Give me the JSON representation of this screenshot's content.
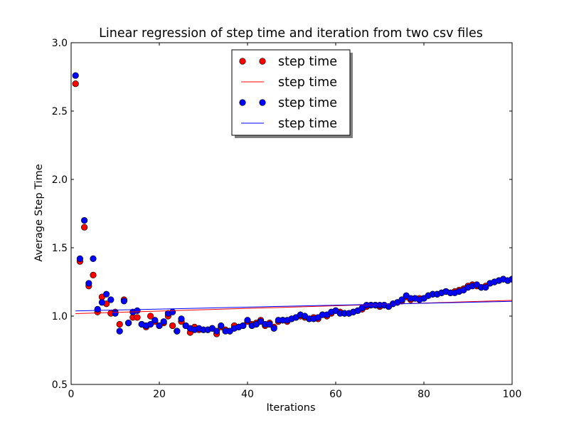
{
  "chart_data": {
    "type": "scatter",
    "title": "Linear regression of step time and iteration from two csv files",
    "xlabel": "Iterations",
    "ylabel": "Average Step Time",
    "xlim": [
      0,
      100
    ],
    "ylim": [
      0.5,
      3.0
    ],
    "x_ticks": [
      0,
      20,
      40,
      60,
      80,
      100
    ],
    "y_ticks": [
      0.5,
      1.0,
      1.5,
      2.0,
      2.5,
      3.0
    ],
    "x_tick_labels": [
      "0",
      "20",
      "40",
      "60",
      "80",
      "100"
    ],
    "y_tick_labels": [
      "0.5",
      "1.0",
      "1.5",
      "2.0",
      "2.5",
      "3.0"
    ],
    "grid": false,
    "legend_position": "top-center",
    "series": [
      {
        "name": "step time",
        "kind": "scatter",
        "color": "#ff0000",
        "x": [
          1,
          2,
          3,
          4,
          5,
          6,
          7,
          8,
          9,
          10,
          11,
          12,
          13,
          14,
          15,
          16,
          17,
          18,
          19,
          20,
          21,
          22,
          23,
          24,
          25,
          26,
          27,
          28,
          29,
          30,
          31,
          32,
          33,
          34,
          35,
          36,
          37,
          38,
          39,
          40,
          41,
          42,
          43,
          44,
          45,
          46,
          47,
          48,
          49,
          50,
          51,
          52,
          53,
          54,
          55,
          56,
          57,
          58,
          59,
          60,
          61,
          62,
          63,
          64,
          65,
          66,
          67,
          68,
          69,
          70,
          71,
          72,
          73,
          74,
          75,
          76,
          77,
          78,
          79,
          80,
          81,
          82,
          83,
          84,
          85,
          86,
          87,
          88,
          89,
          90,
          91,
          92,
          93,
          94,
          95,
          96,
          97,
          98,
          99,
          100
        ],
        "y": [
          2.7,
          1.4,
          1.65,
          1.22,
          1.3,
          1.03,
          1.14,
          1.09,
          1.02,
          1.03,
          0.94,
          1.12,
          0.95,
          0.99,
          0.99,
          0.94,
          0.92,
          1.0,
          0.96,
          0.93,
          0.95,
          1.0,
          0.93,
          0.89,
          0.96,
          0.93,
          0.88,
          0.92,
          0.9,
          0.9,
          0.9,
          0.91,
          0.87,
          0.92,
          0.9,
          0.89,
          0.93,
          0.92,
          0.93,
          0.96,
          0.94,
          0.95,
          0.97,
          0.93,
          0.95,
          0.92,
          0.96,
          0.97,
          0.96,
          0.98,
          0.99,
          1.0,
          0.99,
          0.98,
          0.99,
          0.98,
          1.01,
          1.0,
          1.02,
          1.04,
          1.03,
          1.02,
          1.02,
          1.03,
          1.04,
          1.05,
          1.07,
          1.08,
          1.08,
          1.07,
          1.08,
          1.07,
          1.09,
          1.1,
          1.11,
          1.14,
          1.12,
          1.13,
          1.13,
          1.13,
          1.15,
          1.16,
          1.16,
          1.17,
          1.18,
          1.17,
          1.18,
          1.19,
          1.2,
          1.22,
          1.23,
          1.22,
          1.21,
          1.22,
          1.24,
          1.25,
          1.26,
          1.27,
          1.26,
          1.27
        ]
      },
      {
        "name": "step time",
        "kind": "line",
        "color": "#ff0000",
        "x": [
          1,
          100
        ],
        "y": [
          1.018,
          1.115
        ]
      },
      {
        "name": "step time",
        "kind": "scatter",
        "color": "#0000ff",
        "x": [
          1,
          2,
          3,
          4,
          5,
          6,
          7,
          8,
          9,
          10,
          11,
          12,
          13,
          14,
          15,
          16,
          17,
          18,
          19,
          20,
          21,
          22,
          23,
          24,
          25,
          26,
          27,
          28,
          29,
          30,
          31,
          32,
          33,
          34,
          35,
          36,
          37,
          38,
          39,
          40,
          41,
          42,
          43,
          44,
          45,
          46,
          47,
          48,
          49,
          50,
          51,
          52,
          53,
          54,
          55,
          56,
          57,
          58,
          59,
          60,
          61,
          62,
          63,
          64,
          65,
          66,
          67,
          68,
          69,
          70,
          71,
          72,
          73,
          74,
          75,
          76,
          77,
          78,
          79,
          80,
          81,
          82,
          83,
          84,
          85,
          86,
          87,
          88,
          89,
          90,
          91,
          92,
          93,
          94,
          95,
          96,
          97,
          98,
          99,
          100
        ],
        "y": [
          2.76,
          1.42,
          1.7,
          1.24,
          1.42,
          1.05,
          1.1,
          1.16,
          1.12,
          1.02,
          0.89,
          1.11,
          0.95,
          1.03,
          1.04,
          0.94,
          0.93,
          0.94,
          0.97,
          0.93,
          0.96,
          1.02,
          1.03,
          0.89,
          0.98,
          0.93,
          0.91,
          0.9,
          0.91,
          0.9,
          0.9,
          0.91,
          0.89,
          0.93,
          0.89,
          0.89,
          0.91,
          0.92,
          0.93,
          0.97,
          0.93,
          0.94,
          0.96,
          0.94,
          0.94,
          0.91,
          0.97,
          0.97,
          0.97,
          0.98,
          0.99,
          1.01,
          1.0,
          0.98,
          0.98,
          0.99,
          1.01,
          1.01,
          1.03,
          1.04,
          1.02,
          1.02,
          1.02,
          1.03,
          1.04,
          1.06,
          1.08,
          1.08,
          1.08,
          1.08,
          1.08,
          1.07,
          1.09,
          1.1,
          1.12,
          1.15,
          1.13,
          1.13,
          1.12,
          1.13,
          1.15,
          1.16,
          1.16,
          1.17,
          1.18,
          1.17,
          1.17,
          1.18,
          1.19,
          1.21,
          1.22,
          1.23,
          1.21,
          1.21,
          1.24,
          1.25,
          1.26,
          1.27,
          1.26,
          1.27
        ]
      },
      {
        "name": "step time",
        "kind": "line",
        "color": "#0000ff",
        "x": [
          1,
          100
        ],
        "y": [
          1.038,
          1.108
        ]
      }
    ]
  }
}
